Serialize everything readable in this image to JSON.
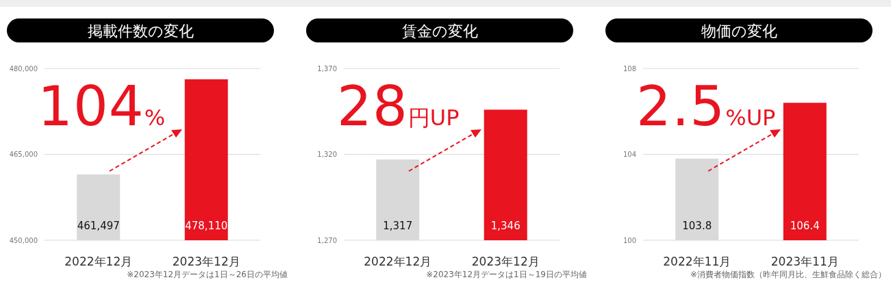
{
  "chart_data": [
    {
      "type": "bar",
      "title": "掲載件数の変化",
      "categories": [
        "2022年12月",
        "2023年12月"
      ],
      "values": [
        461497,
        478110
      ],
      "colors": [
        "#d9d9d9",
        "#e8141f"
      ],
      "value_labels": [
        "461,497",
        "478,110"
      ],
      "ylim": [
        450000,
        480000
      ],
      "yticks": [
        {
          "value": 450000,
          "label": "450,000"
        },
        {
          "value": 465000,
          "label": "465,000"
        },
        {
          "value": 480000,
          "label": "480,000"
        }
      ],
      "grid": "y",
      "annotations": [
        "104%",
        "※2023年12月データは1日～26日の平均値"
      ]
    },
    {
      "type": "bar",
      "title": "賃金の変化",
      "categories": [
        "2022年12月",
        "2023年12月"
      ],
      "values": [
        1317,
        1346
      ],
      "colors": [
        "#d9d9d9",
        "#e8141f"
      ],
      "value_labels": [
        "1,317",
        "1,346"
      ],
      "ylim": [
        1270,
        1370
      ],
      "yticks": [
        {
          "value": 1270,
          "label": "1,270"
        },
        {
          "value": 1320,
          "label": "1,320"
        },
        {
          "value": 1370,
          "label": "1,370"
        }
      ],
      "grid": "y",
      "annotations": [
        "28円UP",
        "※2023年12月データは1日～19日の平均値"
      ]
    },
    {
      "type": "bar",
      "title": "物価の変化",
      "categories": [
        "2022年11月",
        "2023年11月"
      ],
      "values": [
        103.8,
        106.4
      ],
      "colors": [
        "#d9d9d9",
        "#e8141f"
      ],
      "data_labels": true,
      "ylim": [
        100,
        108
      ],
      "yticks": [
        100,
        104,
        108
      ],
      "grid": "y",
      "annotations": [
        "2.5%UP",
        "※消費者物価指数（昨年同月比、生鮮食品除く総合）"
      ]
    }
  ]
}
